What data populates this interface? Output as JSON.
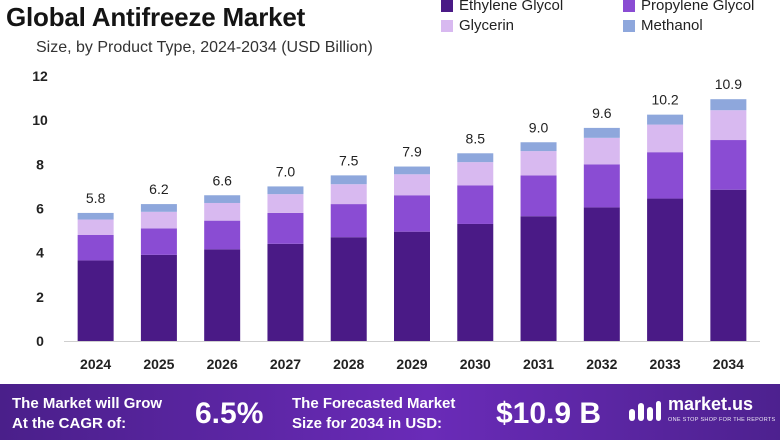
{
  "header": {
    "title": "Global Antifreeze Market",
    "subtitle": "Size, by Product Type, 2024-2034 (USD Billion)"
  },
  "legend": [
    {
      "label": "Ethylene Glycol",
      "color": "#4a1a86"
    },
    {
      "label": "Propylene Glycol",
      "color": "#8a4cd3"
    },
    {
      "label": "Glycerin",
      "color": "#d8b9f0"
    },
    {
      "label": "Methanol",
      "color": "#8ea7dc"
    }
  ],
  "chart_data": {
    "type": "bar",
    "stacked": true,
    "categories": [
      "2024",
      "2025",
      "2026",
      "2027",
      "2028",
      "2029",
      "2030",
      "2031",
      "2032",
      "2033",
      "2034"
    ],
    "series": [
      {
        "name": "Ethylene Glycol",
        "color": "#4a1a86",
        "values": [
          3.65,
          3.9,
          4.15,
          4.4,
          4.7,
          4.95,
          5.3,
          5.65,
          6.05,
          6.45,
          6.85
        ]
      },
      {
        "name": "Propylene Glycol",
        "color": "#8a4cd3",
        "values": [
          1.15,
          1.2,
          1.3,
          1.4,
          1.5,
          1.65,
          1.75,
          1.85,
          1.95,
          2.1,
          2.25
        ]
      },
      {
        "name": "Glycerin",
        "color": "#d8b9f0",
        "values": [
          0.7,
          0.75,
          0.8,
          0.85,
          0.9,
          0.95,
          1.05,
          1.1,
          1.2,
          1.25,
          1.35
        ]
      },
      {
        "name": "Methanol",
        "color": "#8ea7dc",
        "values": [
          0.3,
          0.35,
          0.35,
          0.35,
          0.4,
          0.35,
          0.4,
          0.4,
          0.45,
          0.45,
          0.5
        ]
      }
    ],
    "totals": [
      "5.8",
      "6.2",
      "6.6",
      "7.0",
      "7.5",
      "7.9",
      "8.5",
      "9.0",
      "9.6",
      "10.2",
      "10.9"
    ],
    "yticks": [
      "0",
      "2",
      "4",
      "6",
      "8",
      "10",
      "12"
    ],
    "ylim": [
      0,
      12
    ],
    "grid": false
  },
  "footer": {
    "cagr_label_line1": "The Market will Grow",
    "cagr_label_line2": "At the CAGR of:",
    "cagr_value": "6.5%",
    "forecast_label_line1": "The Forecasted Market",
    "forecast_label_line2": "Size for 2034 in USD:",
    "forecast_value": "$10.9 B",
    "logo_text": "market.us",
    "logo_tagline": "ONE STOP SHOP FOR THE REPORTS"
  }
}
